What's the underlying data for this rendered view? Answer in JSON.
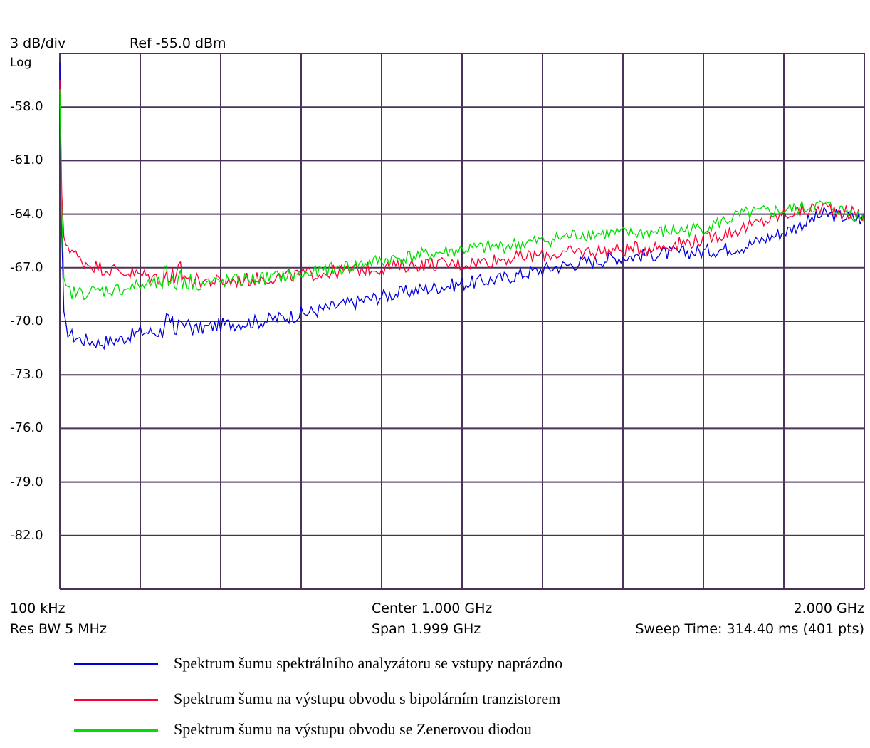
{
  "header": {
    "scale": "3 dB/div",
    "ref": "Ref -55.0 dBm",
    "mode": "Log"
  },
  "footer": {
    "start": "100 kHz",
    "center": "Center 1.000 GHz",
    "stop": "2.000 GHz",
    "rbw": "Res BW 5 MHz",
    "span": "Span 1.999 GHz",
    "sweep": "Sweep Time: 314.40 ms (401 pts)"
  },
  "legend": [
    {
      "label": "Spektrum šumu spektrálního analyzátoru se vstupy naprázdno",
      "color": "#0000dd"
    },
    {
      "label": "Spektrum šumu na výstupu obvodu s bipolárním tranzistorem",
      "color": "#ff0033"
    },
    {
      "label": "Spektrum šumu na výstupu obvodu se Zenerovou diodou",
      "color": "#00dd00"
    }
  ],
  "chart_data": {
    "type": "line",
    "title": "",
    "xlabel": "",
    "ylabel": "",
    "xlim": [
      0.0001,
      2.0
    ],
    "ylim": [
      -85,
      -55
    ],
    "y_ticks": [
      "-58.0",
      "-61.0",
      "-64.0",
      "-67.0",
      "-70.0",
      "-73.0",
      "-76.0",
      "-79.0",
      "-82.0"
    ],
    "grid": true,
    "grid_color": "#4a3358",
    "x": [
      0.0001,
      0.003,
      0.008,
      0.015,
      0.03,
      0.05,
      0.1,
      0.15,
      0.2,
      0.25,
      0.3,
      0.35,
      0.4,
      0.5,
      0.6,
      0.7,
      0.8,
      0.9,
      1.0,
      1.1,
      1.2,
      1.3,
      1.4,
      1.5,
      1.6,
      1.7,
      1.8,
      1.9,
      2.0
    ],
    "series": [
      {
        "name": "Spektrum šumu spektrálního analyzátoru se vstupy naprázdno",
        "color": "#0000dd",
        "values": [
          -55.5,
          -62.0,
          -69.5,
          -70.4,
          -70.8,
          -71.0,
          -71.2,
          -71.0,
          -70.6,
          -70.6,
          -70.5,
          -70.4,
          -70.2,
          -70.0,
          -69.6,
          -69.1,
          -68.6,
          -68.2,
          -67.9,
          -67.6,
          -67.1,
          -66.7,
          -66.4,
          -66.2,
          -66.1,
          -65.8,
          -65.0,
          -64.0,
          -64.3
        ]
      },
      {
        "name": "Spektrum šumu na výstupu obvodu s bipolárním tranzistorem",
        "color": "#ff0033",
        "values": [
          -56.5,
          -61.0,
          -65.6,
          -65.6,
          -66.0,
          -66.6,
          -67.0,
          -67.2,
          -67.4,
          -67.6,
          -67.7,
          -67.7,
          -67.8,
          -67.6,
          -67.4,
          -67.2,
          -67.0,
          -66.8,
          -66.8,
          -66.5,
          -66.3,
          -66.1,
          -66.0,
          -65.8,
          -65.4,
          -64.8,
          -64.0,
          -63.6,
          -64.1
        ]
      },
      {
        "name": "Spektrum šumu na výstupu obvodu se Zenerovou diodou",
        "color": "#00dd00",
        "values": [
          -57.0,
          -61.5,
          -67.8,
          -68.2,
          -68.4,
          -68.4,
          -68.3,
          -68.2,
          -68.0,
          -67.9,
          -67.9,
          -67.9,
          -67.8,
          -67.6,
          -67.4,
          -67.0,
          -66.6,
          -66.3,
          -66.0,
          -65.8,
          -65.5,
          -65.1,
          -65.1,
          -65.0,
          -64.8,
          -64.0,
          -63.8,
          -63.5,
          -64.2
        ]
      }
    ]
  }
}
